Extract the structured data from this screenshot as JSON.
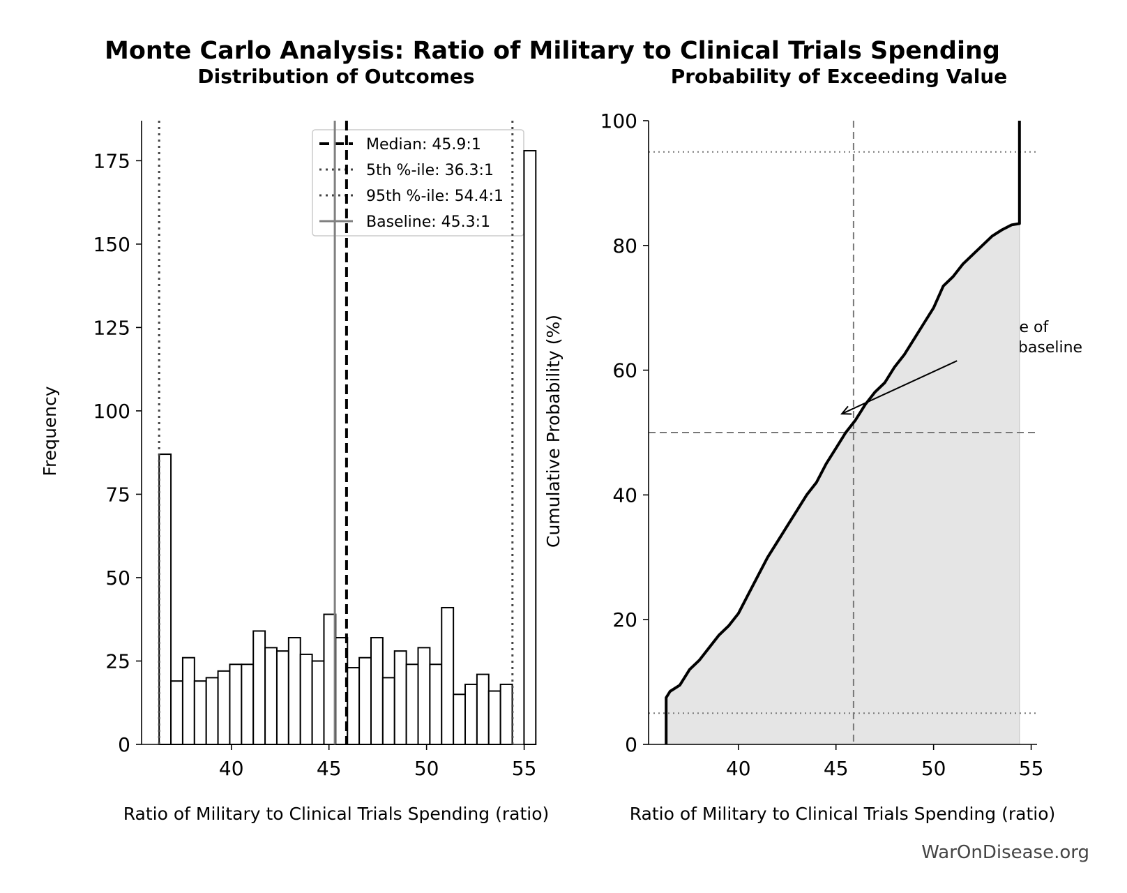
{
  "figure": {
    "suptitle": "Monte Carlo Analysis: Ratio of Military to Clinical Trials Spending",
    "watermark": "WarOnDisease.org"
  },
  "chart_data": [
    {
      "type": "bar",
      "title": "Distribution of Outcomes",
      "xlabel": "Ratio of Military to Clinical Trials Spending (ratio)",
      "ylabel": "Frequency",
      "xlim": [
        35.4,
        55.3
      ],
      "ylim": [
        0,
        187
      ],
      "xticks": [
        40,
        45,
        50,
        55
      ],
      "yticks": [
        0,
        25,
        50,
        75,
        100,
        125,
        150,
        175
      ],
      "grid": false,
      "legend_position": "upper right",
      "bin_start": 36.3,
      "bin_width": 0.603,
      "values": [
        87,
        19,
        26,
        19,
        20,
        22,
        24,
        24,
        34,
        29,
        28,
        32,
        27,
        25,
        39,
        32,
        23,
        26,
        32,
        20,
        28,
        24,
        29,
        24,
        41,
        15,
        18,
        21,
        16,
        18,
        0,
        178
      ],
      "reference_lines": [
        {
          "label": "Median: 45.9:1",
          "x": 45.9,
          "style": "dashed",
          "color": "#000000"
        },
        {
          "label": "5th %-ile: 36.3:1",
          "x": 36.3,
          "style": "dotted",
          "color": "#444444"
        },
        {
          "label": "95th %-ile: 54.4:1",
          "x": 54.4,
          "style": "dotted",
          "color": "#444444"
        },
        {
          "label": "Baseline: 45.3:1",
          "x": 45.3,
          "style": "solid",
          "color": "#808080"
        }
      ]
    },
    {
      "type": "area",
      "title": "Probability of Exceeding Value",
      "xlabel": "Ratio of Military to Clinical Trials Spending (ratio)",
      "ylabel": "Cumulative Probability (%)",
      "xlim": [
        35.4,
        55.3
      ],
      "ylim": [
        0,
        100
      ],
      "xticks": [
        40,
        45,
        50,
        55
      ],
      "yticks": [
        0,
        20,
        40,
        60,
        80,
        100
      ],
      "grid": false,
      "series": [
        {
          "x": [
            36.3,
            36.3,
            36.5,
            37.0,
            37.5,
            38.0,
            38.5,
            39.0,
            39.5,
            40.0,
            40.5,
            41.0,
            41.5,
            42.0,
            42.5,
            43.0,
            43.5,
            44.0,
            44.5,
            45.0,
            45.5,
            46.0,
            46.5,
            47.0,
            47.5,
            48.0,
            48.5,
            49.0,
            49.5,
            50.0,
            50.5,
            51.0,
            51.5,
            52.0,
            52.5,
            53.0,
            53.5,
            54.0,
            54.4,
            54.4
          ],
          "y": [
            0,
            7.5,
            8.5,
            9.5,
            12.0,
            13.5,
            15.5,
            17.5,
            19.0,
            21.0,
            24.0,
            27.0,
            30.0,
            32.5,
            35.0,
            37.5,
            40.0,
            42.0,
            45.0,
            47.5,
            50.0,
            52.0,
            54.5,
            56.5,
            58.0,
            60.5,
            62.5,
            65.0,
            67.5,
            70.0,
            73.5,
            75.0,
            77.0,
            78.5,
            80.0,
            81.5,
            82.5,
            83.3,
            83.5,
            100
          ]
        }
      ],
      "reference_lines": [
        {
          "axis": "y",
          "y": 95,
          "style": "dotted"
        },
        {
          "axis": "y",
          "y": 5,
          "style": "dotted"
        },
        {
          "axis": "y",
          "y": 50,
          "style": "dashed"
        },
        {
          "axis": "x",
          "x": 45.9,
          "style": "dashed"
        }
      ],
      "annotation": {
        "text_lines": [
          "53% chance of",
          "exceeding baseline"
        ],
        "arrow_to": [
          45.3,
          53.0
        ],
        "text_at": [
          49.9,
          63.0
        ]
      }
    }
  ]
}
